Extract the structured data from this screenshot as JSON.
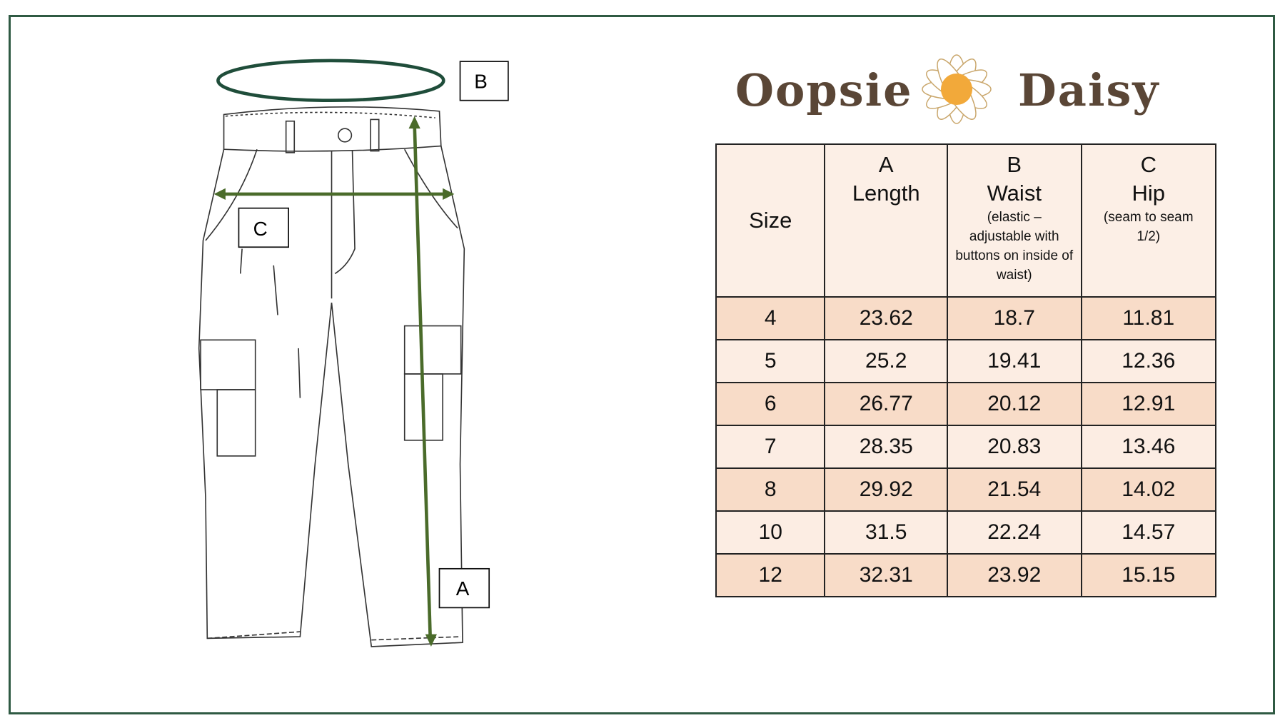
{
  "brand": {
    "word1": "Oopsie",
    "word2": "Daisy"
  },
  "labels": {
    "waist": "B",
    "hip": "C",
    "length": "A"
  },
  "colors": {
    "frame": "#2f5a43",
    "waist_ellipse": "#1f4d3a",
    "arrows": "#4a6b2a",
    "row_dark": "#f8dcc8",
    "row_light": "#fcede3"
  },
  "table": {
    "headers": [
      {
        "letter": "",
        "title": "Size",
        "note": ""
      },
      {
        "letter": "A",
        "title": "Length",
        "note": ""
      },
      {
        "letter": "B",
        "title": "Waist",
        "note": "(elastic – adjustable with buttons on inside of waist)"
      },
      {
        "letter": "C",
        "title": "Hip",
        "note": "(seam to seam 1/2)"
      }
    ],
    "rows": [
      [
        "4",
        "23.62",
        "18.7",
        "11.81"
      ],
      [
        "5",
        "25.2",
        "19.41",
        "12.36"
      ],
      [
        "6",
        "26.77",
        "20.12",
        "12.91"
      ],
      [
        "7",
        "28.35",
        "20.83",
        "13.46"
      ],
      [
        "8",
        "29.92",
        "21.54",
        "14.02"
      ],
      [
        "10",
        "31.5",
        "22.24",
        "14.57"
      ],
      [
        "12",
        "32.31",
        "23.92",
        "15.15"
      ]
    ]
  }
}
